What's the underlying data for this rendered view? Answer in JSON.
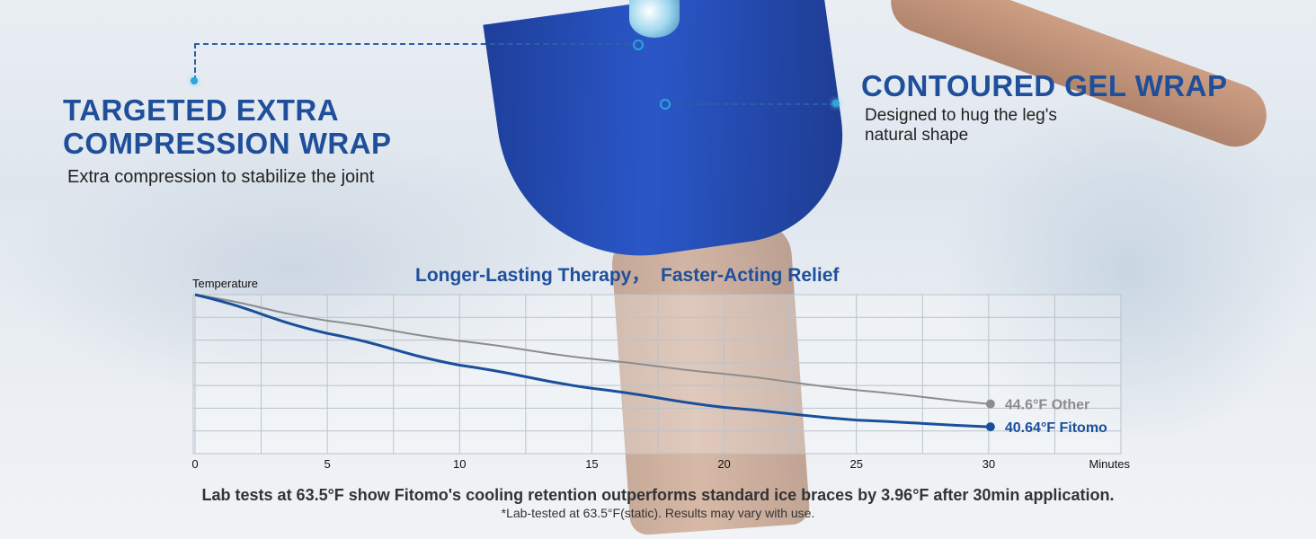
{
  "callouts": {
    "left": {
      "title_line1": "TARGETED EXTRA",
      "title_line2": "COMPRESSION WRAP",
      "subtitle": "Extra compression to stabilize the joint"
    },
    "right": {
      "title": "CONTOURED GEL WRAP",
      "subtitle_line1": "Designed to hug the leg's",
      "subtitle_line2": "natural shape"
    }
  },
  "colors": {
    "brand_blue": "#1f4f9a",
    "fitomo_line": "#1a4f9c",
    "other_line": "#8c8c8c",
    "accent_cyan": "#2aa6d8"
  },
  "chart_data": {
    "type": "line",
    "title": "Longer-Lasting Therapy，  Faster-Acting Relief",
    "ylabel": "Temperature",
    "xlabel": "Minutes",
    "x": [
      0,
      5,
      10,
      15,
      20,
      25,
      30
    ],
    "xticks": [
      "0",
      "5",
      "10",
      "15",
      "20",
      "25",
      "30"
    ],
    "xlim": [
      0,
      35
    ],
    "ylim": [
      36,
      63.5
    ],
    "grid": true,
    "series": [
      {
        "name": "Other",
        "values": [
          63.5,
          59.0,
          55.5,
          52.4,
          49.8,
          47.0,
          44.6
        ],
        "end_label": "44.6°F Other",
        "color": "#8c8c8c"
      },
      {
        "name": "Fitomo",
        "values": [
          63.5,
          56.8,
          51.3,
          47.3,
          44.0,
          41.8,
          40.64
        ],
        "end_label": "40.64°F Fitomo",
        "color": "#1a4f9c"
      }
    ]
  },
  "footer": {
    "main": "Lab tests at  63.5°F show Fitomo's cooling retention outperforms standard ice braces by 3.96°F after 30min application.",
    "note": "*Lab-tested at 63.5°F(static). Results may vary with use."
  }
}
